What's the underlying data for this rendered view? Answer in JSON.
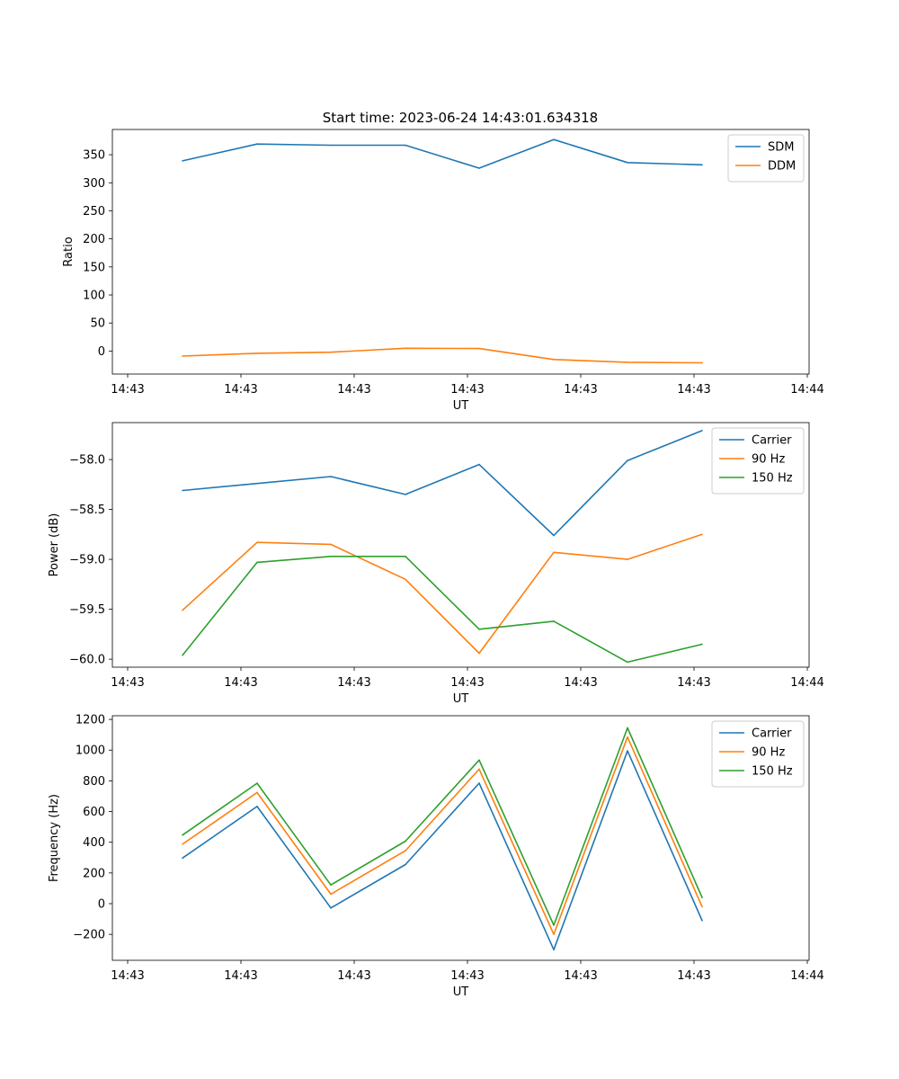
{
  "figure": {
    "title": "Start time: 2023-06-24 14:43:01.634318"
  },
  "colors": {
    "blue": "#1f77b4",
    "orange": "#ff7f0e",
    "green": "#2ca02c"
  },
  "chart_data": [
    {
      "type": "line",
      "title": "Start time: 2023-06-24 14:43:01.634318",
      "xlabel": "UT",
      "ylabel": "Ratio",
      "x_tick_labels": [
        "14:43",
        "14:43",
        "14:43",
        "14:43",
        "14:43",
        "14:43",
        "14:43",
        "14:44"
      ],
      "x_points": 8,
      "ylim": [
        -41,
        395
      ],
      "yticks": [
        0,
        50,
        100,
        150,
        200,
        250,
        300,
        350
      ],
      "legend_position": "top-right",
      "series": [
        {
          "name": "SDM",
          "color": "#1f77b4",
          "values": [
            339,
            369,
            367,
            367,
            326,
            377,
            336,
            332
          ]
        },
        {
          "name": "DDM",
          "color": "#ff7f0e",
          "values": [
            -9,
            -4,
            -2,
            5,
            4.5,
            -15,
            -20,
            -21
          ]
        }
      ]
    },
    {
      "type": "line",
      "title": "",
      "xlabel": "UT",
      "ylabel": "Power (dB)",
      "x_tick_labels": [
        "14:43",
        "14:43",
        "14:43",
        "14:43",
        "14:43",
        "14:43",
        "14:43",
        "14:44"
      ],
      "x_points": 8,
      "ylim": [
        -60.08,
        -57.63
      ],
      "yticks": [
        -60.0,
        -59.5,
        -59.0,
        -58.5,
        -58.0
      ],
      "ytick_labels": [
        "−60.0",
        "−59.5",
        "−59.0",
        "−58.5",
        "−58.0"
      ],
      "legend_position": "top-right",
      "series": [
        {
          "name": "Carrier",
          "color": "#1f77b4",
          "values": [
            -58.31,
            -58.24,
            -58.17,
            -58.35,
            -58.05,
            -58.76,
            -58.01,
            -57.71
          ]
        },
        {
          "name": "90 Hz",
          "color": "#ff7f0e",
          "values": [
            -59.51,
            -58.83,
            -58.85,
            -59.2,
            -59.94,
            -58.93,
            -59.0,
            -58.75
          ]
        },
        {
          "name": "150 Hz",
          "color": "#2ca02c",
          "values": [
            -59.96,
            -59.03,
            -58.97,
            -58.97,
            -59.7,
            -59.62,
            -60.03,
            -59.85
          ]
        }
      ]
    },
    {
      "type": "line",
      "title": "",
      "xlabel": "UT",
      "ylabel": "Frequency (Hz)",
      "x_tick_labels": [
        "14:43",
        "14:43",
        "14:43",
        "14:43",
        "14:43",
        "14:43",
        "14:43",
        "14:44"
      ],
      "x_points": 8,
      "ylim": [
        -369,
        1224
      ],
      "yticks": [
        -200,
        0,
        200,
        400,
        600,
        800,
        1000,
        1200
      ],
      "ytick_labels": [
        "−200",
        "0",
        "200",
        "400",
        "600",
        "800",
        "1000",
        "1200"
      ],
      "legend_position": "top-right",
      "series": [
        {
          "name": "Carrier",
          "color": "#1f77b4",
          "values": [
            297,
            633,
            -28,
            255,
            785,
            -300,
            995,
            -110
          ]
        },
        {
          "name": "90 Hz",
          "color": "#ff7f0e",
          "values": [
            387,
            724,
            62,
            345,
            876,
            -200,
            1085,
            -20
          ]
        },
        {
          "name": "150 Hz",
          "color": "#2ca02c",
          "values": [
            447,
            784,
            122,
            407,
            935,
            -140,
            1145,
            40
          ]
        }
      ]
    }
  ]
}
